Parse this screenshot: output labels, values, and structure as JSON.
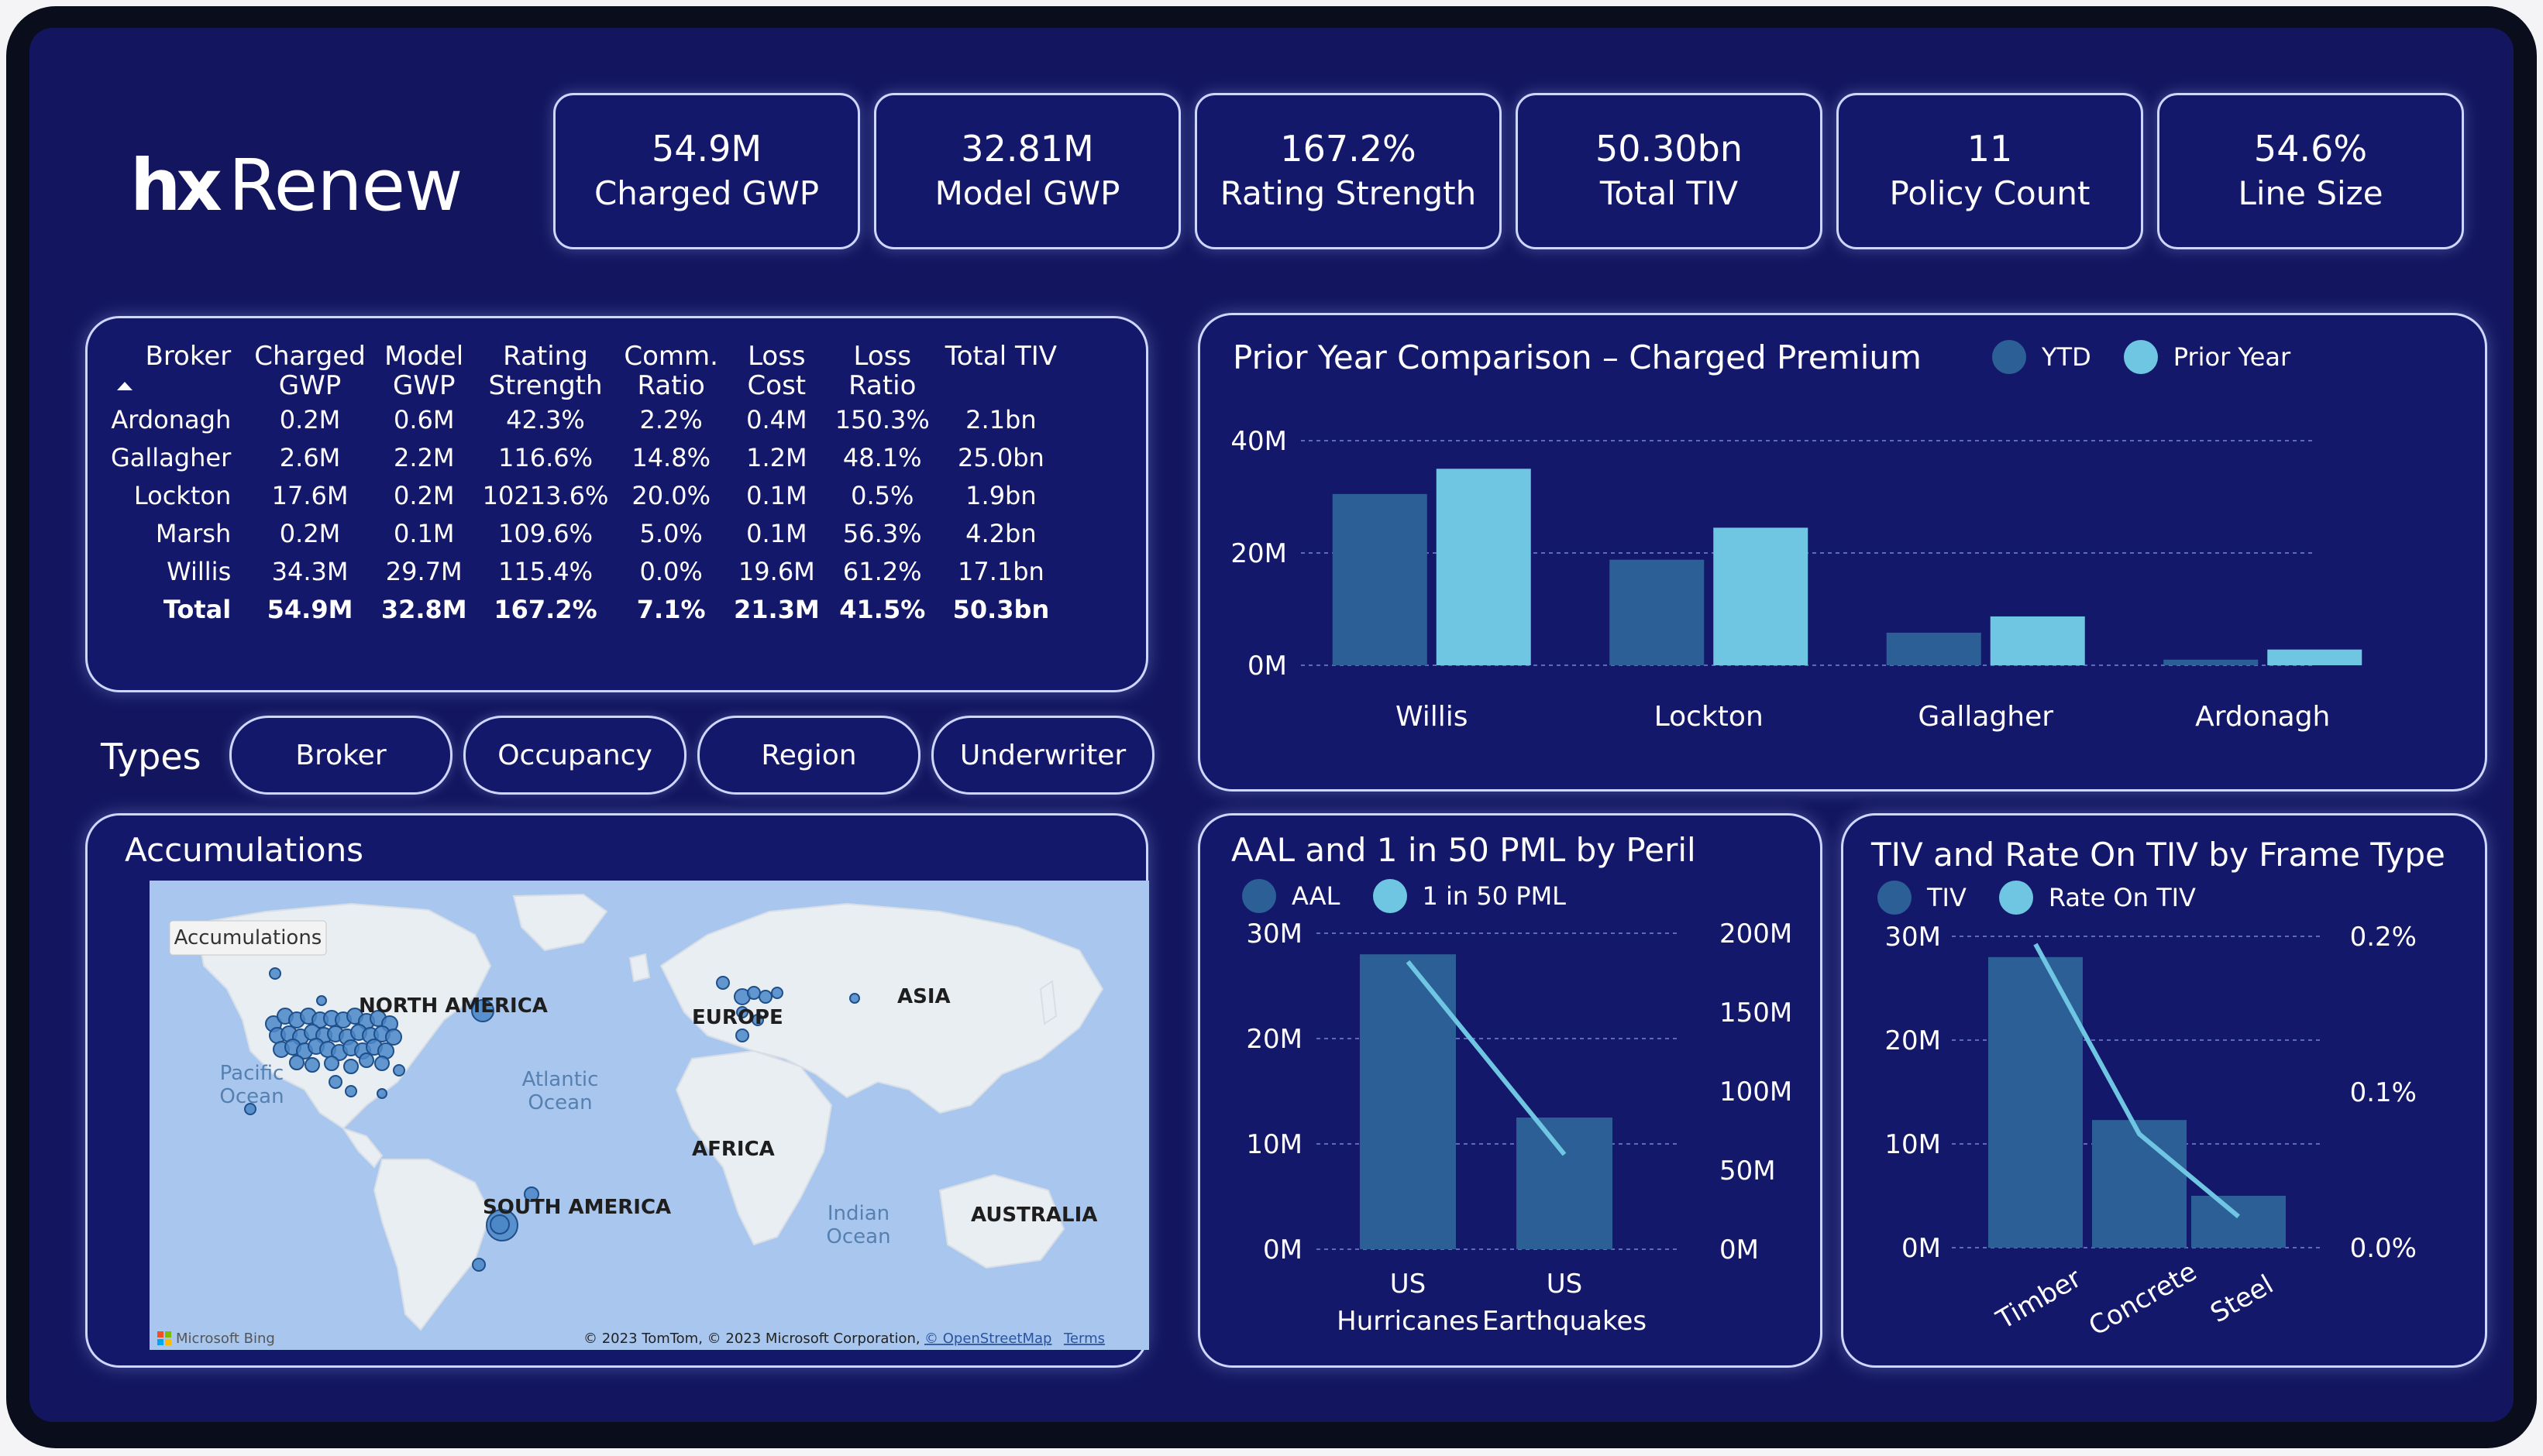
{
  "app": {
    "logo_hx": "hx",
    "logo_text": "Renew"
  },
  "kpis": [
    {
      "value": "54.9M",
      "label": "Charged GWP"
    },
    {
      "value": "32.81M",
      "label": "Model GWP"
    },
    {
      "value": "167.2%",
      "label": "Rating Strength"
    },
    {
      "value": "50.30bn",
      "label": "Total TIV"
    },
    {
      "value": "11",
      "label": "Policy Count"
    },
    {
      "value": "54.6%",
      "label": "Line Size"
    }
  ],
  "broker_table": {
    "headers": [
      {
        "line1": "Broker",
        "line2": ""
      },
      {
        "line1": "Charged",
        "line2": "GWP"
      },
      {
        "line1": "Model",
        "line2": "GWP"
      },
      {
        "line1": "Rating",
        "line2": "Strength"
      },
      {
        "line1": "Comm.",
        "line2": "Ratio"
      },
      {
        "line1": "Loss",
        "line2": "Cost"
      },
      {
        "line1": "Loss",
        "line2": "Ratio"
      },
      {
        "line1": "Total TIV",
        "line2": ""
      }
    ],
    "rows": [
      [
        "Ardonagh",
        "0.2M",
        "0.6M",
        "42.3%",
        "2.2%",
        "0.4M",
        "150.3%",
        "2.1bn"
      ],
      [
        "Gallagher",
        "2.6M",
        "2.2M",
        "116.6%",
        "14.8%",
        "1.2M",
        "48.1%",
        "25.0bn"
      ],
      [
        "Lockton",
        "17.6M",
        "0.2M",
        "10213.6%",
        "20.0%",
        "0.1M",
        "0.5%",
        "1.9bn"
      ],
      [
        "Marsh",
        "0.2M",
        "0.1M",
        "109.6%",
        "5.0%",
        "0.1M",
        "56.3%",
        "4.2bn"
      ],
      [
        "Willis",
        "34.3M",
        "29.7M",
        "115.4%",
        "0.0%",
        "19.6M",
        "61.2%",
        "17.1bn"
      ]
    ],
    "total": [
      "Total",
      "54.9M",
      "32.8M",
      "167.2%",
      "7.1%",
      "21.3M",
      "41.5%",
      "50.3bn"
    ]
  },
  "types": {
    "label": "Types",
    "buttons": [
      "Broker",
      "Occupancy",
      "Region",
      "Underwriter"
    ]
  },
  "accumulations": {
    "title": "Accumulations",
    "map_badge": "Accumulations",
    "labels": {
      "north_america": "NORTH AMERICA",
      "europe": "EUROPE",
      "asia": "ASIA",
      "africa": "AFRICA",
      "south_america": "SOUTH AMERICA",
      "australia": "AUSTRALIA",
      "pacific_1": "Pacific",
      "pacific_2": "Ocean",
      "atlantic_1": "Atlantic",
      "atlantic_2": "Ocean",
      "indian_1": "Indian",
      "indian_2": "Ocean"
    },
    "bing": "Microsoft Bing",
    "copyright": "© 2023 TomTom, © 2023 Microsoft Corporation, ",
    "osm": "© OpenStreetMap",
    "terms": "Terms"
  },
  "colors": {
    "ytd": "#2d5f97",
    "prior": "#6ec6e2",
    "bg": "#13165f",
    "panel": "#14186a"
  },
  "chart_data": [
    {
      "type": "bar",
      "title": "Prior Year Comparison – Charged Premium",
      "categories": [
        "Willis",
        "Lockton",
        "Gallagher",
        "Ardonagh"
      ],
      "series": [
        {
          "name": "YTD",
          "values": [
            30.5,
            18.8,
            5.8,
            1.0
          ]
        },
        {
          "name": "Prior Year",
          "values": [
            35.0,
            24.5,
            8.7,
            2.8
          ]
        }
      ],
      "yticks": [
        "40M",
        "20M",
        "0M"
      ],
      "ylim": [
        0,
        40
      ],
      "legend": "top-right"
    },
    {
      "type": "bar",
      "title": "AAL and 1 in 50 PML by Peril",
      "categories_line1": [
        "US",
        "US"
      ],
      "categories_line2": [
        "Hurricanes",
        "Earthquakes"
      ],
      "series": [
        {
          "name": "AAL",
          "values": [
            28.0,
            12.5
          ]
        },
        {
          "name": "1 in 50 PML",
          "values": [
            182,
            60
          ]
        }
      ],
      "y_left_ticks": [
        "30M",
        "20M",
        "10M",
        "0M"
      ],
      "y_right_ticks": [
        "200M",
        "150M",
        "100M",
        "50M",
        "0M"
      ],
      "ylim_left": [
        0,
        30
      ],
      "ylim_right": [
        0,
        200
      ],
      "legend": "top-left"
    },
    {
      "type": "bar",
      "title": "TIV and Rate On TIV by Frame Type",
      "categories": [
        "Timber",
        "Concrete",
        "Steel"
      ],
      "series": [
        {
          "name": "TIV",
          "values": [
            28.0,
            12.3,
            5.0
          ]
        },
        {
          "name": "Rate On TIV",
          "values": [
            0.195,
            0.073,
            0.02
          ]
        }
      ],
      "y_left_ticks": [
        "30M",
        "20M",
        "10M",
        "0M"
      ],
      "y_right_ticks": [
        "0.2%",
        "0.1%",
        "0.0%"
      ],
      "ylim_left": [
        0,
        30
      ],
      "ylim_right": [
        0,
        0.2
      ],
      "legend": "top-left"
    }
  ]
}
